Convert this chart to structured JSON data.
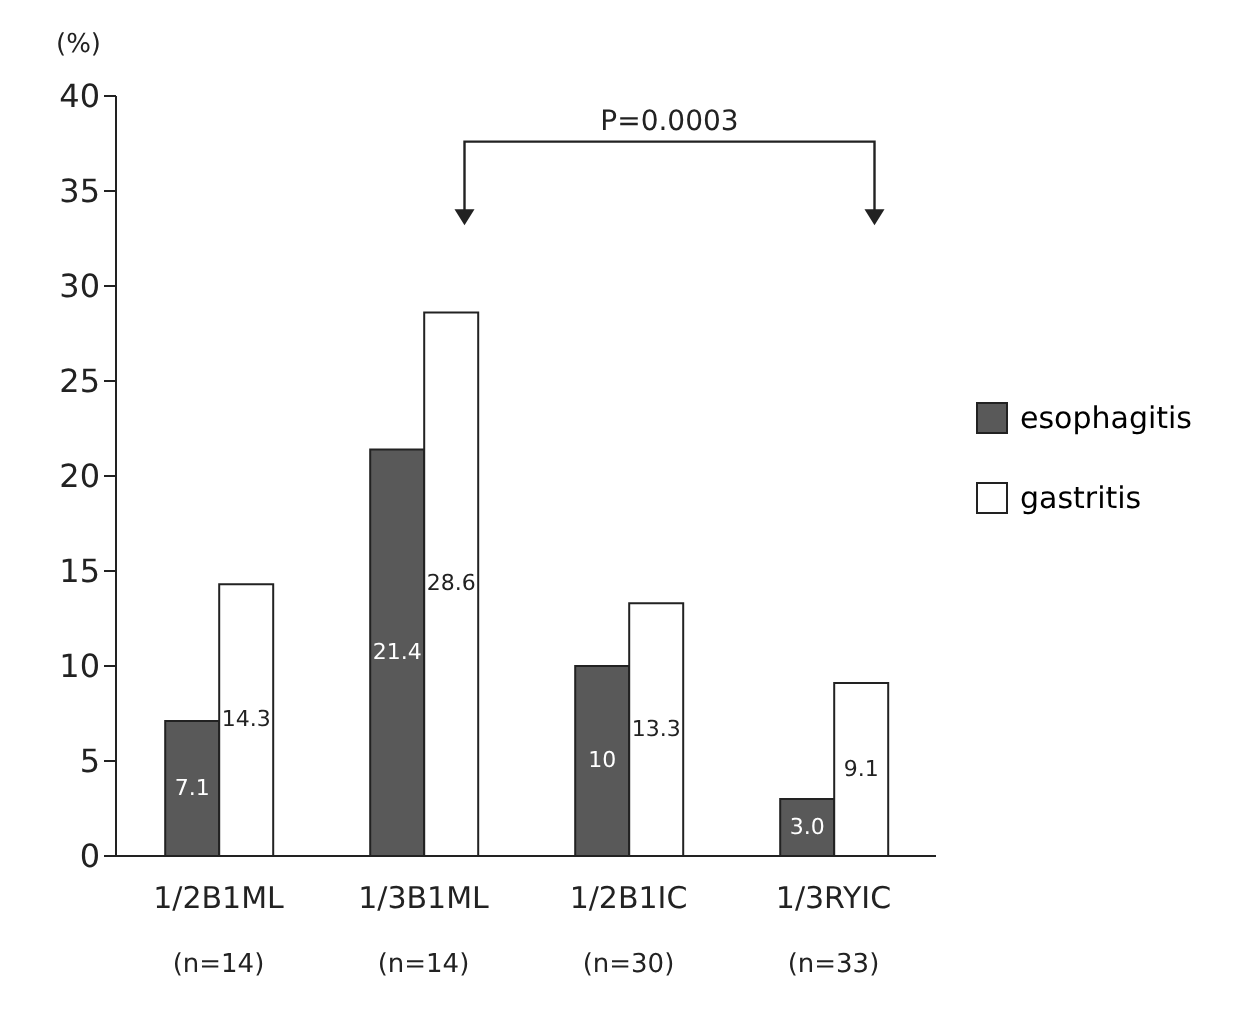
{
  "chart_data": {
    "type": "bar",
    "ylabel": "(%)",
    "categories": [
      "1/2B1ML\n(n=14)",
      "1/3B1ML\n(n=14)",
      "1/2B1IC\n(n=30)",
      "1/3RYIC\n(n=33)"
    ],
    "series": [
      {
        "name": "esophagitis",
        "color": "#595959",
        "values": [
          7.1,
          21.4,
          10,
          3.0
        ],
        "value_labels": [
          "7.1",
          "21.4",
          "10",
          "3.0"
        ]
      },
      {
        "name": "gastritis",
        "color": "#ffffff",
        "values": [
          14.3,
          28.6,
          13.3,
          9.1
        ],
        "value_labels": [
          "14.3",
          "28.6",
          "13.3",
          "9.1"
        ]
      }
    ],
    "ylim": [
      0,
      40
    ],
    "yticks": [
      0,
      5,
      10,
      15,
      20,
      25,
      30,
      35,
      40
    ],
    "grid": false,
    "legend": "right",
    "annotations": [
      "P=0.0003"
    ]
  }
}
